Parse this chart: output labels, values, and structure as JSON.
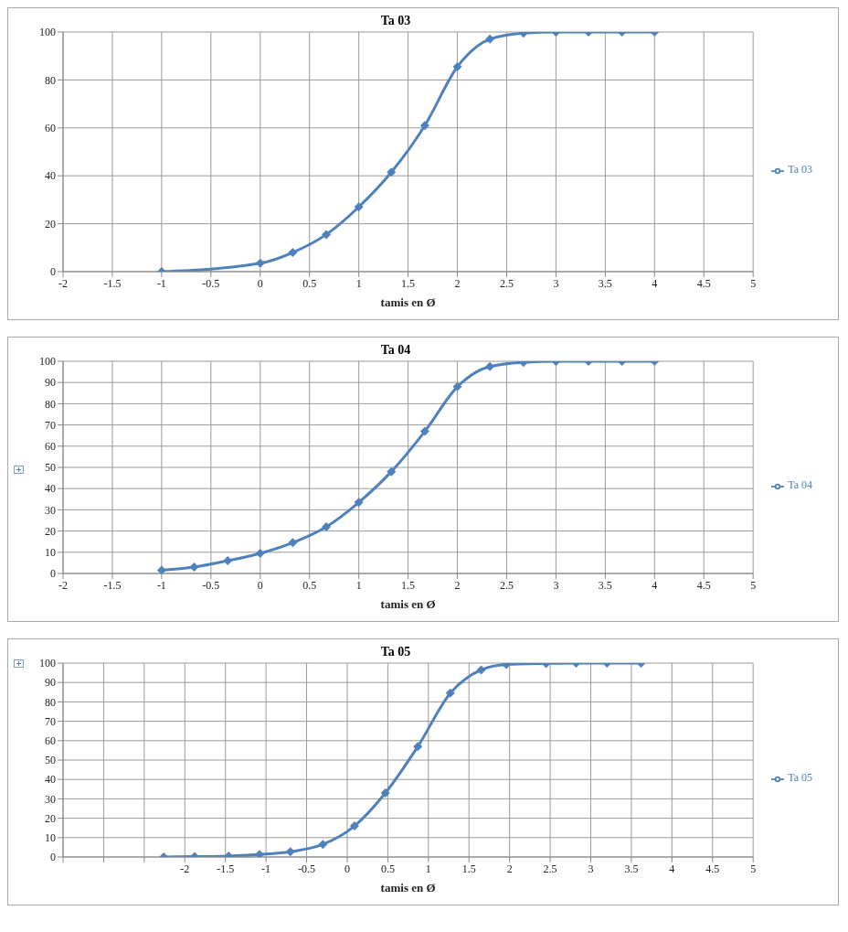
{
  "chart_data": [
    {
      "type": "line",
      "title": "Ta 03",
      "xlabel": "tamis en Ø",
      "x": [
        -1,
        0,
        0.33,
        0.67,
        1,
        1.33,
        1.67,
        2,
        2.33,
        2.67,
        3,
        3.33,
        3.67,
        4
      ],
      "series": [
        {
          "name": "Ta  03",
          "color": "#4f81bd",
          "values": [
            0,
            3.5,
            8,
            15.5,
            27,
            41.5,
            61,
            85.5,
            97,
            99.5,
            100,
            100,
            100,
            100
          ]
        }
      ],
      "xlim": [
        -2,
        5
      ],
      "xticks": [
        -2,
        -1.5,
        -1,
        -0.5,
        0,
        0.5,
        1,
        1.5,
        2,
        2.5,
        3,
        3.5,
        4,
        4.5,
        5
      ],
      "ylim": [
        0,
        100
      ],
      "yticks": [
        0,
        20,
        40,
        60,
        80,
        100
      ],
      "grid": true,
      "legend": "right",
      "marker": "diamond"
    },
    {
      "type": "line",
      "title": "Ta 04",
      "xlabel": "tamis en Ø",
      "x": [
        -1,
        -0.67,
        -0.33,
        0,
        0.33,
        0.67,
        1,
        1.33,
        1.67,
        2,
        2.33,
        2.67,
        3,
        3.33,
        3.67,
        4
      ],
      "series": [
        {
          "name": "Ta  04",
          "color": "#4f81bd",
          "values": [
            1.5,
            3,
            6,
            9.5,
            14.5,
            22,
            33.5,
            48,
            67,
            88,
            97.5,
            99.5,
            100,
            100,
            100,
            100
          ]
        }
      ],
      "xlim": [
        -2,
        5
      ],
      "xticks": [
        -2,
        -1.5,
        -1,
        -0.5,
        0,
        0.5,
        1,
        1.5,
        2,
        2.5,
        3,
        3.5,
        4,
        4.5,
        5
      ],
      "ylim": [
        0,
        100
      ],
      "yticks": [
        0,
        10,
        20,
        30,
        40,
        50,
        60,
        70,
        80,
        90,
        100
      ],
      "grid": true,
      "legend": "right",
      "marker": "diamond"
    },
    {
      "type": "line",
      "title": "Ta 05",
      "xlabel": "tamis  en  Ø",
      "x": [
        -2.26,
        -1.88,
        -1.46,
        -1.08,
        -0.7,
        -0.3,
        0.09,
        0.47,
        0.87,
        1.27,
        1.65,
        1.96,
        2.45,
        2.82,
        3.2,
        3.62
      ],
      "series": [
        {
          "name": "Ta  05",
          "color": "#4f81bd",
          "values": [
            0,
            0.2,
            0.5,
            1.3,
            2.7,
            6.5,
            16,
            33,
            57,
            84.5,
            96.5,
            99.3,
            99.8,
            100,
            100,
            100
          ]
        }
      ],
      "xlim": [
        -3.5,
        5
      ],
      "xticks": [
        {
          "value": -3.5,
          "label": null
        },
        {
          "value": -3,
          "label": null
        },
        {
          "value": -2.5,
          "label": null
        },
        -2,
        -1.5,
        -1,
        -0.5,
        0,
        0.5,
        1,
        1.5,
        2,
        2.5,
        3,
        3.5,
        4,
        4.5,
        5
      ],
      "ylim": [
        0,
        100
      ],
      "yticks": [
        0,
        10,
        20,
        30,
        40,
        50,
        60,
        70,
        80,
        90,
        100
      ],
      "grid": true,
      "legend": "right",
      "marker": "diamond"
    }
  ]
}
